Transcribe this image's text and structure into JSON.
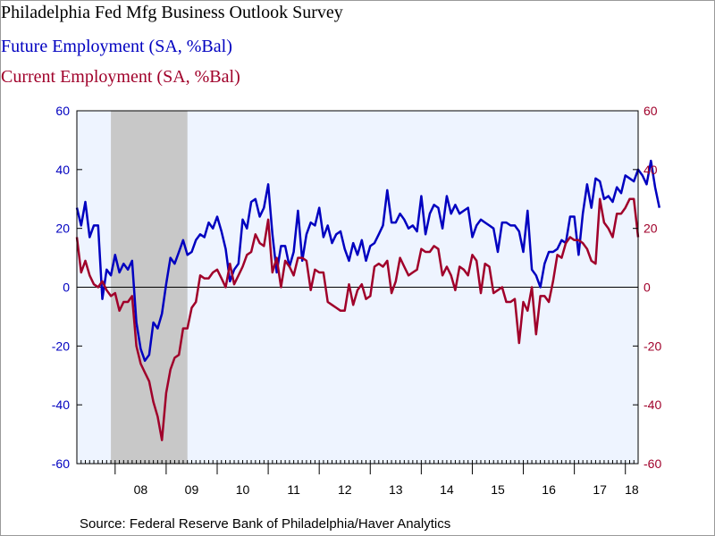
{
  "chart_data": {
    "type": "line",
    "title": "Philadelphia Fed Mfg Business Outlook Survey",
    "xlabel": "",
    "ylabel": "",
    "x_tick_labels": [
      "08",
      "09",
      "10",
      "11",
      "12",
      "13",
      "14",
      "15",
      "16",
      "17",
      "18"
    ],
    "x_range": [
      2007.25,
      2018.25
    ],
    "left_axis": {
      "ylim": [
        -60,
        60
      ],
      "ticks": [
        -60,
        -40,
        -20,
        0,
        20,
        40,
        60
      ],
      "color": "#0000c0"
    },
    "right_axis": {
      "ylim": [
        -60,
        60
      ],
      "ticks": [
        -60,
        -40,
        -20,
        0,
        20,
        40,
        60
      ],
      "color": "#a0002a"
    },
    "recession_shading": {
      "start": 2007.917,
      "end": 2009.417,
      "color": "#c8c8c8"
    },
    "plot_background": "#eef4ff",
    "zero_line": true,
    "grid": false,
    "series": [
      {
        "name": "Future Employment (SA, %Bal)",
        "axis": "left",
        "color": "#0000c0",
        "start": 2007.25,
        "step": 0.083333,
        "values": [
          27,
          21,
          29,
          17,
          21,
          21,
          -4,
          6,
          4,
          11,
          5,
          8,
          6,
          9,
          -12,
          -21,
          -25,
          -23,
          -12,
          -14,
          -9,
          1,
          10,
          8,
          12,
          16,
          11,
          12,
          16,
          18,
          17,
          22,
          20,
          24,
          19,
          13,
          2,
          6,
          8,
          23,
          20,
          29,
          30,
          24,
          27,
          35,
          18,
          5,
          14,
          14,
          7,
          12,
          26,
          9,
          18,
          22,
          21,
          27,
          17,
          21,
          15,
          18,
          19,
          13,
          9,
          15,
          11,
          16,
          9,
          14,
          15,
          18,
          21,
          33,
          22,
          22,
          25,
          23,
          20,
          21,
          19,
          31,
          18,
          25,
          28,
          27,
          20,
          31,
          25,
          28,
          25,
          26,
          27,
          17,
          21,
          23,
          22,
          21,
          20,
          12,
          22,
          22,
          21,
          21,
          19,
          12,
          26,
          6,
          4,
          0,
          8,
          12,
          12,
          13,
          16,
          15,
          24,
          24,
          11,
          25,
          35,
          27,
          37,
          36,
          30,
          31,
          29,
          34,
          32,
          38,
          37,
          36,
          40,
          38,
          35,
          43,
          34,
          27
        ]
      },
      {
        "name": "Current Employment (SA, %Bal)",
        "axis": "right",
        "color": "#a0002a",
        "start": 2007.25,
        "step": 0.083333,
        "values": [
          17,
          5,
          9,
          4,
          1,
          0,
          2,
          -1,
          -3,
          -2,
          -8,
          -5,
          -5,
          -3,
          -20,
          -26,
          -29,
          -32,
          -39,
          -44,
          -52,
          -36,
          -28,
          -24,
          -23,
          -14,
          -14,
          -7,
          -5,
          4,
          3,
          3,
          5,
          6,
          3,
          0,
          8,
          1,
          4,
          7,
          11,
          12,
          18,
          15,
          14,
          23,
          5,
          10,
          0,
          9,
          7,
          4,
          10,
          10,
          9,
          -1,
          6,
          5,
          5,
          -5,
          -6,
          -7,
          -8,
          -8,
          1,
          -6,
          -1,
          1,
          -4,
          -3,
          7,
          8,
          7,
          9,
          -2,
          2,
          10,
          7,
          4,
          5,
          6,
          13,
          12,
          12,
          14,
          13,
          4,
          7,
          4,
          -1,
          7,
          6,
          4,
          11,
          9,
          -2,
          8,
          7,
          -2,
          -1,
          0,
          -5,
          -5,
          -4,
          -19,
          -5,
          -8,
          0,
          -16,
          -3,
          -3,
          -5,
          2,
          11,
          10,
          15,
          17,
          16,
          16,
          15,
          13,
          9,
          8,
          30,
          22,
          20,
          17,
          25,
          25,
          27,
          30,
          30,
          17
        ]
      }
    ]
  },
  "texts": {
    "title": "Philadelphia Fed Mfg Business Outlook Survey",
    "future_label": "Future Employment (SA, %Bal)",
    "current_label": "Current Employment (SA, %Bal)",
    "source": "Source:  Federal Reserve Bank of Philadelphia/Haver Analytics"
  }
}
